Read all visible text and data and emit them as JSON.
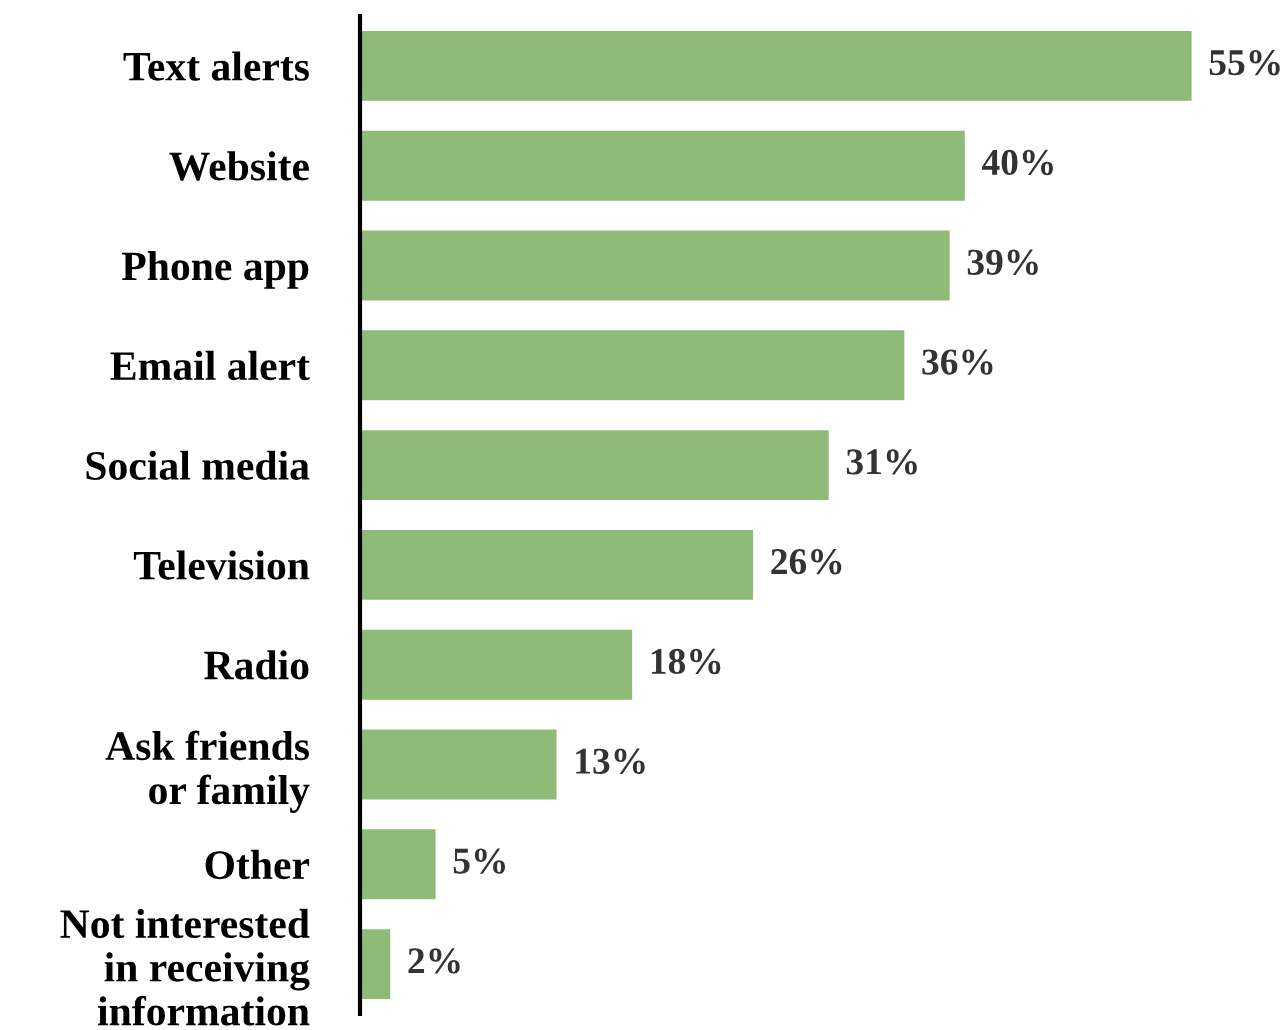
{
  "chart_data": {
    "type": "bar",
    "orientation": "horizontal",
    "categories": [
      "Text alerts",
      "Website",
      "Phone app",
      "Email alert",
      "Social media",
      "Television",
      "Radio",
      "Ask friends\nor family",
      "Other",
      "Not interested\nin receiving\ninformation"
    ],
    "values": [
      55,
      40,
      39,
      36,
      31,
      26,
      18,
      13,
      5,
      2
    ],
    "value_labels": [
      "55%",
      "40%",
      "39%",
      "36%",
      "31%",
      "26%",
      "18%",
      "13%",
      "5%",
      "2%"
    ],
    "color": "#8fbb78",
    "grid": false,
    "legend": false
  }
}
